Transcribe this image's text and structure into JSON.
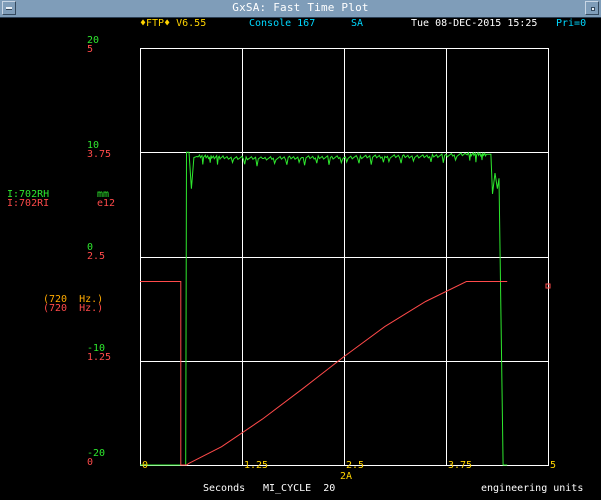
{
  "window": {
    "title": "GxSA: Fast Time Plot"
  },
  "header": {
    "app": "♦FTP♦ V6.55",
    "console": "Console 167",
    "mode": "SA",
    "datetime": "Tue 08-DEC-2015 15:25",
    "priority": "Pri=0"
  },
  "y_axes": {
    "left": [
      "20",
      "10",
      "0",
      "-10",
      "-20"
    ],
    "right": [
      "5",
      "3.75",
      "2.5",
      "1.25",
      "0"
    ]
  },
  "devices": [
    {
      "name": "I:702RH",
      "units": "mm",
      "rate": "(720  Hz.)",
      "color": "#2ee82e"
    },
    {
      "name": "I:702RI",
      "units": "e12",
      "rate": "(720  Hz.)",
      "color": "#ff4a4a"
    }
  ],
  "x_axis": {
    "ticks": [
      "0",
      "1.25",
      "2.5",
      "3.75",
      "5"
    ],
    "event": "2A",
    "label": "Seconds",
    "trigger": "MI_CYCLE  20",
    "units": "engineering units"
  },
  "colors": {
    "grid": "#ffffff",
    "green_trace": "#2ee82e",
    "red_trace": "#ff4a4a",
    "header": "#00d8ff",
    "accent": "#ffd400"
  },
  "chart_data": {
    "type": "line",
    "title": "",
    "xlabel": "Seconds",
    "xlim": [
      0,
      5
    ],
    "grid": true,
    "series": [
      {
        "name": "I:702RH",
        "axis": "left",
        "units": "mm",
        "ylim": [
          -20,
          20
        ],
        "x": [
          0,
          0.55,
          0.56,
          0.57,
          0.6,
          0.63,
          0.66,
          0.7,
          1.0,
          1.5,
          2.0,
          2.5,
          3.0,
          3.5,
          4.0,
          4.25,
          4.3,
          4.32,
          4.35,
          4.38,
          4.4,
          4.45,
          4.5
        ],
        "y": [
          -20,
          -20,
          -20,
          10,
          10,
          6.5,
          9.5,
          9.6,
          9.5,
          9.4,
          9.5,
          9.5,
          9.6,
          9.6,
          9.8,
          9.8,
          9.8,
          6,
          8,
          6.5,
          7.5,
          -20,
          -20
        ]
      },
      {
        "name": "I:702RI",
        "axis": "right",
        "units": "e12",
        "ylim": [
          0,
          5
        ],
        "x": [
          0,
          0.5,
          0.5,
          0.57,
          0.6,
          1.0,
          1.5,
          2.0,
          2.5,
          3.0,
          3.5,
          4.0,
          4.25,
          4.35,
          4.5
        ],
        "y": [
          2.2,
          2.2,
          0,
          0,
          0.02,
          0.22,
          0.55,
          0.92,
          1.3,
          1.66,
          1.96,
          2.2,
          2.2,
          2.2,
          2.2
        ]
      }
    ]
  }
}
